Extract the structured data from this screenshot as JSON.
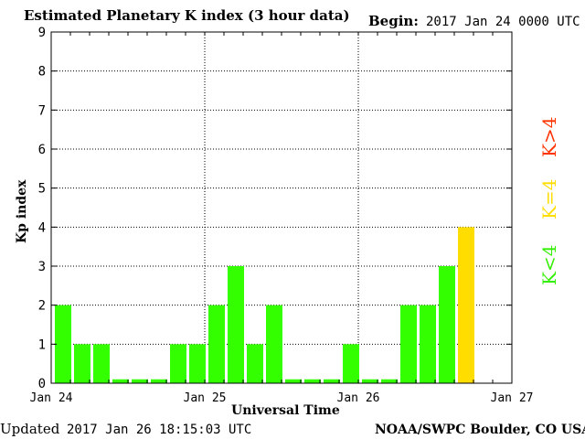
{
  "header": {
    "title": "Estimated Planetary K index (3 hour data)",
    "begin_label": "Begin:",
    "begin_value": "2017 Jan 24 0000 UTC"
  },
  "footer": {
    "updated_label": "Updated",
    "updated_value": "2017 Jan 26 18:15:03 UTC",
    "credit": "NOAA/SWPC Boulder, CO USA"
  },
  "legend": [
    {
      "label": "K>4",
      "color": "#ff3300"
    },
    {
      "label": "K=4",
      "color": "#ffdd00"
    },
    {
      "label": "K<4",
      "color": "#33ee00"
    }
  ],
  "colors": {
    "low": "#33ff00",
    "equal": "#ffdd00",
    "high": "#ff3300"
  },
  "chart_data": {
    "type": "bar",
    "xlabel": "Universal Time",
    "ylabel": "Kp index",
    "ylim": [
      0,
      9
    ],
    "yticks": [
      0,
      1,
      2,
      3,
      4,
      5,
      6,
      7,
      8,
      9
    ],
    "xticks": [
      "Jan 24",
      "Jan 25",
      "Jan 26",
      "Jan 27"
    ],
    "grid": true,
    "series": [
      {
        "values": [
          2,
          1,
          1,
          0,
          0,
          0,
          1,
          1,
          2,
          3,
          1,
          2,
          0,
          0,
          0,
          1,
          0,
          0,
          2,
          2,
          3,
          4
        ]
      }
    ]
  }
}
